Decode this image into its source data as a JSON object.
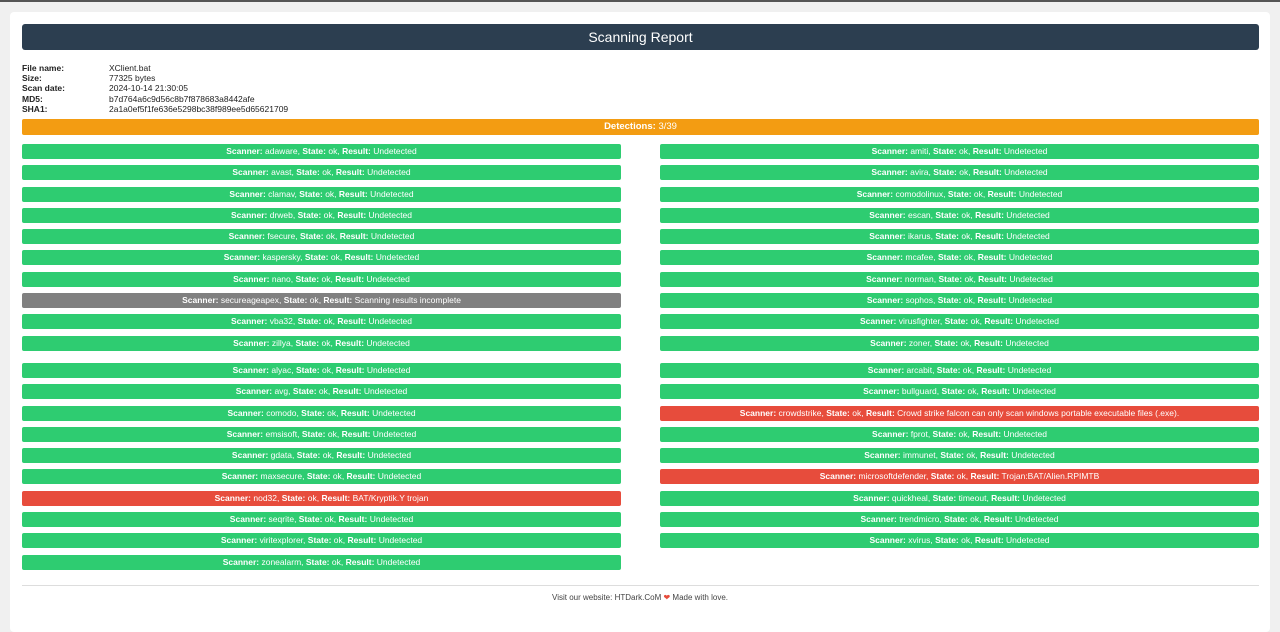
{
  "header": {
    "title": "Scanning Report"
  },
  "meta": [
    {
      "key": "File name:",
      "value": "XClient.bat"
    },
    {
      "key": "Size:",
      "value": "77325 bytes"
    },
    {
      "key": "Scan date:",
      "value": "2024-10-14 21:30:05"
    },
    {
      "key": "MD5:",
      "value": "b7d764a6c9d56c8b7f878683a8442afe"
    },
    {
      "key": "SHA1:",
      "value": "2a1a0ef5f1fe636e5298bc38f989ee5d65621709"
    }
  ],
  "detections": {
    "label": "Detections:",
    "value": "3/39"
  },
  "labels": {
    "scanner": "Scanner:",
    "state": "State:",
    "result": "Result:"
  },
  "colors": {
    "ok": "#2ecc71",
    "incomplete": "#808080",
    "detected": "#e74c3c",
    "detections_bar": "#f39c12",
    "header": "#2c3e50"
  },
  "groups": [
    {
      "left": [
        {
          "scanner": "adaware",
          "state": "ok",
          "result": "Undetected",
          "status": "ok"
        },
        {
          "scanner": "avast",
          "state": "ok",
          "result": "Undetected",
          "status": "ok"
        },
        {
          "scanner": "clamav",
          "state": "ok",
          "result": "Undetected",
          "status": "ok"
        },
        {
          "scanner": "drweb",
          "state": "ok",
          "result": "Undetected",
          "status": "ok"
        },
        {
          "scanner": "fsecure",
          "state": "ok",
          "result": "Undetected",
          "status": "ok"
        },
        {
          "scanner": "kaspersky",
          "state": "ok",
          "result": "Undetected",
          "status": "ok"
        },
        {
          "scanner": "nano",
          "state": "ok",
          "result": "Undetected",
          "status": "ok"
        },
        {
          "scanner": "secureageapex",
          "state": "ok",
          "result": "Scanning results incomplete",
          "status": "incomplete"
        },
        {
          "scanner": "vba32",
          "state": "ok",
          "result": "Undetected",
          "status": "ok"
        },
        {
          "scanner": "zillya",
          "state": "ok",
          "result": "Undetected",
          "status": "ok"
        }
      ],
      "right": [
        {
          "scanner": "amiti",
          "state": "ok",
          "result": "Undetected",
          "status": "ok"
        },
        {
          "scanner": "avira",
          "state": "ok",
          "result": "Undetected",
          "status": "ok"
        },
        {
          "scanner": "comodolinux",
          "state": "ok",
          "result": "Undetected",
          "status": "ok"
        },
        {
          "scanner": "escan",
          "state": "ok",
          "result": "Undetected",
          "status": "ok"
        },
        {
          "scanner": "ikarus",
          "state": "ok",
          "result": "Undetected",
          "status": "ok"
        },
        {
          "scanner": "mcafee",
          "state": "ok",
          "result": "Undetected",
          "status": "ok"
        },
        {
          "scanner": "norman",
          "state": "ok",
          "result": "Undetected",
          "status": "ok"
        },
        {
          "scanner": "sophos",
          "state": "ok",
          "result": "Undetected",
          "status": "ok"
        },
        {
          "scanner": "virusfighter",
          "state": "ok",
          "result": "Undetected",
          "status": "ok"
        },
        {
          "scanner": "zoner",
          "state": "ok",
          "result": "Undetected",
          "status": "ok"
        }
      ]
    },
    {
      "left": [
        {
          "scanner": "alyac",
          "state": "ok",
          "result": "Undetected",
          "status": "ok"
        },
        {
          "scanner": "avg",
          "state": "ok",
          "result": "Undetected",
          "status": "ok"
        },
        {
          "scanner": "comodo",
          "state": "ok",
          "result": "Undetected",
          "status": "ok"
        },
        {
          "scanner": "emsisoft",
          "state": "ok",
          "result": "Undetected",
          "status": "ok"
        },
        {
          "scanner": "gdata",
          "state": "ok",
          "result": "Undetected",
          "status": "ok"
        },
        {
          "scanner": "maxsecure",
          "state": "ok",
          "result": "Undetected",
          "status": "ok"
        },
        {
          "scanner": "nod32",
          "state": "ok",
          "result": "BAT/Kryptik.Y trojan",
          "status": "detected"
        },
        {
          "scanner": "seqrite",
          "state": "ok",
          "result": "Undetected",
          "status": "ok"
        },
        {
          "scanner": "viritexplorer",
          "state": "ok",
          "result": "Undetected",
          "status": "ok"
        },
        {
          "scanner": "zonealarm",
          "state": "ok",
          "result": "Undetected",
          "status": "ok"
        }
      ],
      "right": [
        {
          "scanner": "arcabit",
          "state": "ok",
          "result": "Undetected",
          "status": "ok"
        },
        {
          "scanner": "bullguard",
          "state": "ok",
          "result": "Undetected",
          "status": "ok"
        },
        {
          "scanner": "crowdstrike",
          "state": "ok",
          "result": "Crowd strike falcon can only scan windows portable executable files (.exe).",
          "status": "detected"
        },
        {
          "scanner": "fprot",
          "state": "ok",
          "result": "Undetected",
          "status": "ok"
        },
        {
          "scanner": "immunet",
          "state": "ok",
          "result": "Undetected",
          "status": "ok"
        },
        {
          "scanner": "microsoftdefender",
          "state": "ok",
          "result": "Trojan:BAT/Alien.RPIMTB",
          "status": "detected"
        },
        {
          "scanner": "quickheal",
          "state": "timeout",
          "result": "Undetected",
          "status": "ok"
        },
        {
          "scanner": "trendmicro",
          "state": "ok",
          "result": "Undetected",
          "status": "ok"
        },
        {
          "scanner": "xvirus",
          "state": "ok",
          "result": "Undetected",
          "status": "ok"
        }
      ]
    }
  ],
  "footer": {
    "prefix": "Visit our website:",
    "link": "HTDark.CoM",
    "suffix": "Made with love."
  }
}
